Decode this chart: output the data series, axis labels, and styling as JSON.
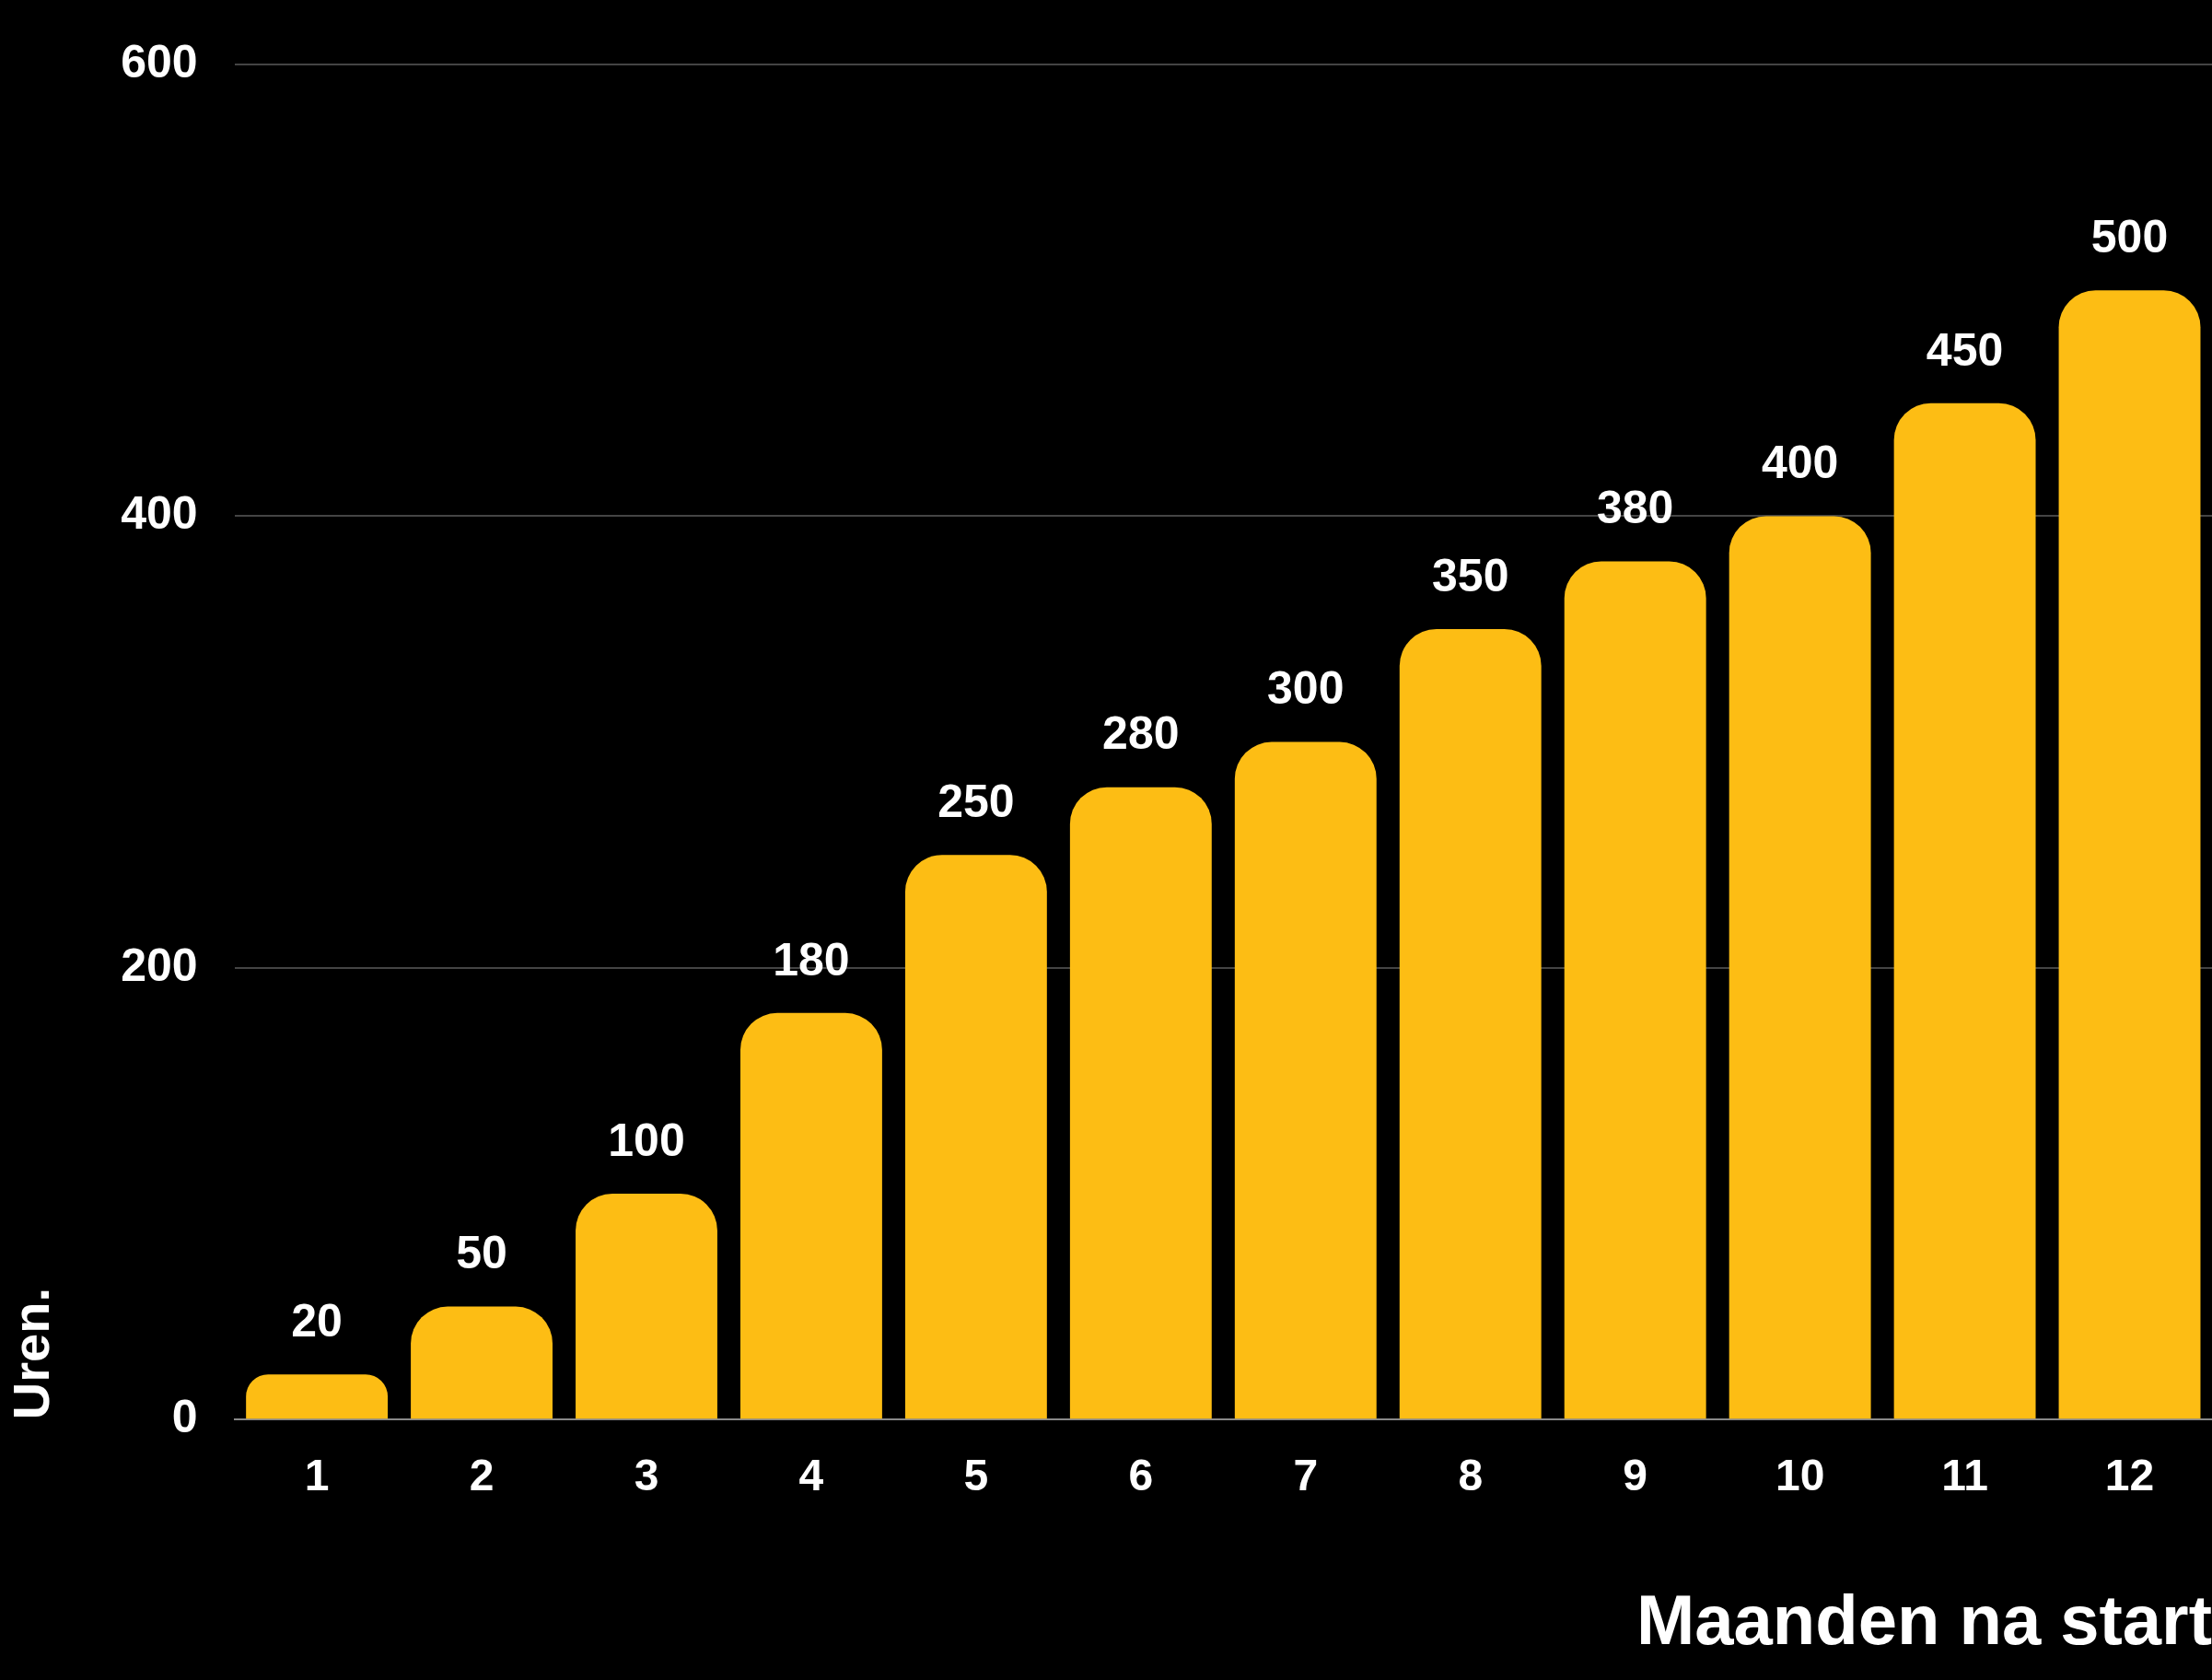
{
  "chart_data": {
    "type": "bar",
    "xlabel": "Maanden na start",
    "ylabel": "Uren.",
    "categories": [
      "1",
      "2",
      "3",
      "4",
      "5",
      "6",
      "7",
      "8",
      "9",
      "10",
      "11",
      "12"
    ],
    "values": [
      20,
      50,
      100,
      180,
      250,
      280,
      300,
      350,
      380,
      400,
      450,
      500
    ],
    "color": "#fdbd14",
    "ylim": [
      0,
      600
    ],
    "yticks": [
      0,
      200,
      400,
      600
    ],
    "grid": "y",
    "data_labels": true
  }
}
